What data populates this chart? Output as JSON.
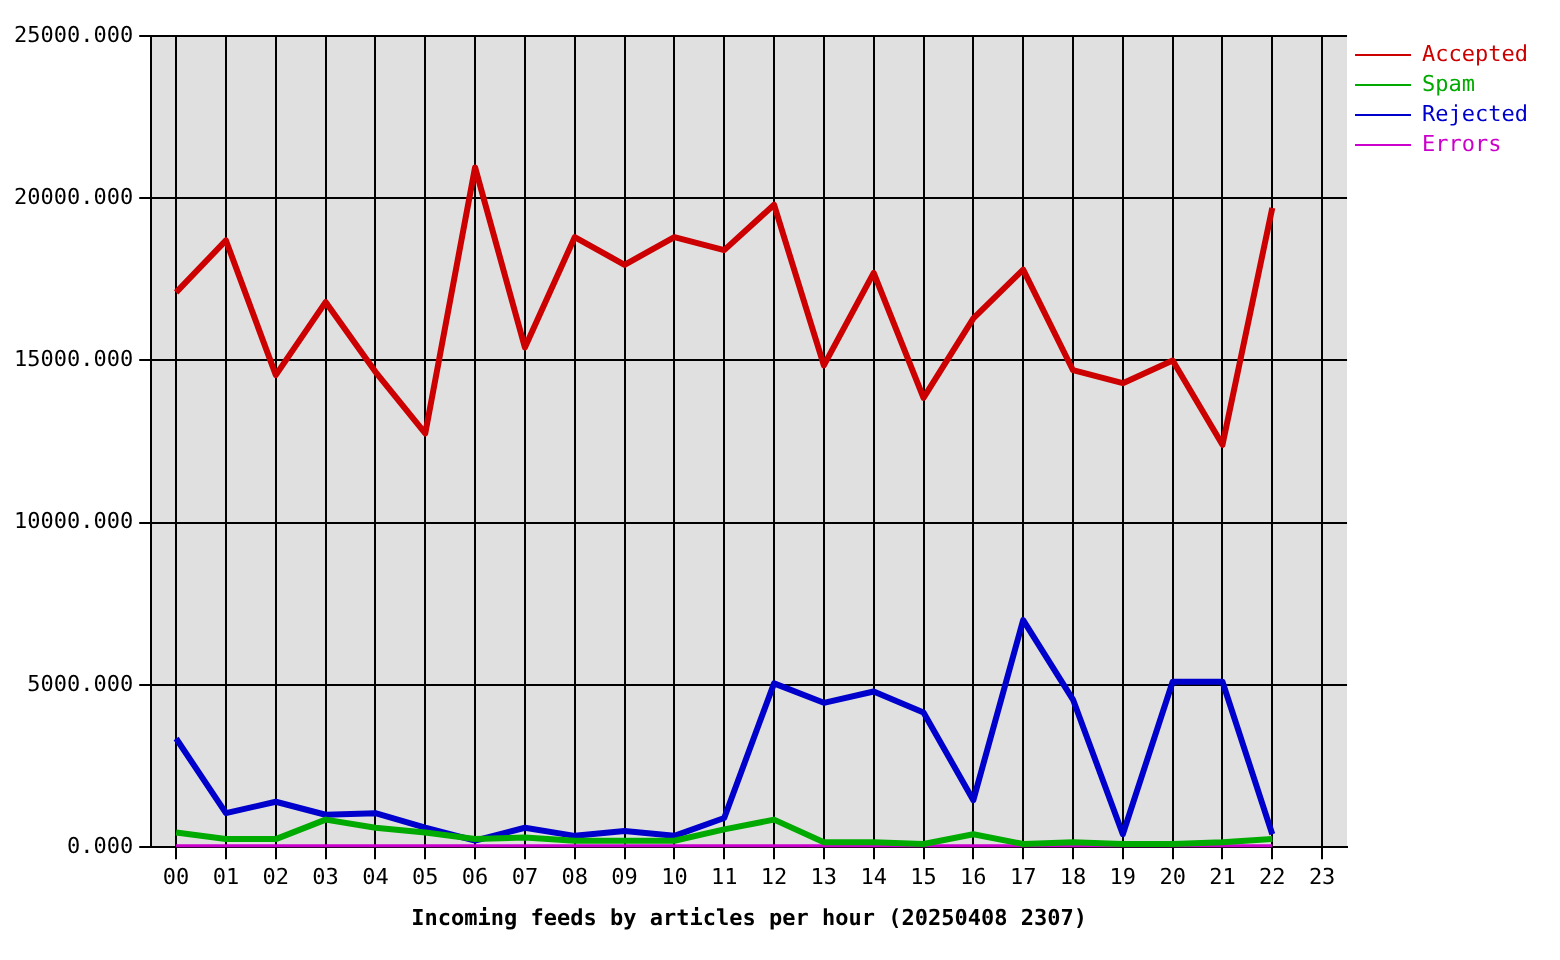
{
  "chart_data": {
    "type": "line",
    "xlabel": "Incoming feeds by articles per hour (20250408 2307)",
    "categories": [
      "00",
      "01",
      "02",
      "03",
      "04",
      "05",
      "06",
      "07",
      "08",
      "09",
      "10",
      "11",
      "12",
      "13",
      "14",
      "15",
      "16",
      "17",
      "18",
      "19",
      "20",
      "21",
      "22",
      "23"
    ],
    "series": [
      {
        "name": "Accepted",
        "color": "#cc0000",
        "values": [
          17100,
          18700,
          14550,
          16800,
          14650,
          12750,
          20950,
          15400,
          18800,
          17950,
          18800,
          18400,
          19800,
          14850,
          17700,
          13850,
          16300,
          17800,
          14700,
          14300,
          15000,
          12400,
          19700,
          null
        ]
      },
      {
        "name": "Spam",
        "color": "#00aa00",
        "values": [
          450,
          250,
          250,
          850,
          600,
          450,
          250,
          300,
          200,
          200,
          200,
          550,
          850,
          150,
          150,
          100,
          400,
          100,
          150,
          100,
          100,
          150,
          250,
          null
        ]
      },
      {
        "name": "Rejected",
        "color": "#0000cc",
        "values": [
          3350,
          1050,
          1400,
          1000,
          1050,
          600,
          200,
          600,
          350,
          500,
          350,
          900,
          5050,
          4450,
          4800,
          4150,
          1450,
          7000,
          4550,
          400,
          5100,
          5100,
          400,
          null
        ]
      },
      {
        "name": "Errors",
        "color": "#cc00cc",
        "values": [
          0,
          0,
          0,
          0,
          0,
          0,
          0,
          0,
          0,
          0,
          0,
          0,
          0,
          0,
          0,
          0,
          0,
          0,
          0,
          0,
          0,
          0,
          0,
          null
        ]
      }
    ],
    "ylim": [
      0,
      25000
    ],
    "yticks": [
      {
        "value": 0,
        "label": "0.000"
      },
      {
        "value": 5000,
        "label": "5000.000"
      },
      {
        "value": 10000,
        "label": "10000.000"
      },
      {
        "value": 15000,
        "label": "15000.000"
      },
      {
        "value": 20000,
        "label": "20000.000"
      },
      {
        "value": 25000,
        "label": "25000.000"
      }
    ],
    "grid": true,
    "legend": "top right",
    "marker": "none",
    "line_style": "solid"
  }
}
